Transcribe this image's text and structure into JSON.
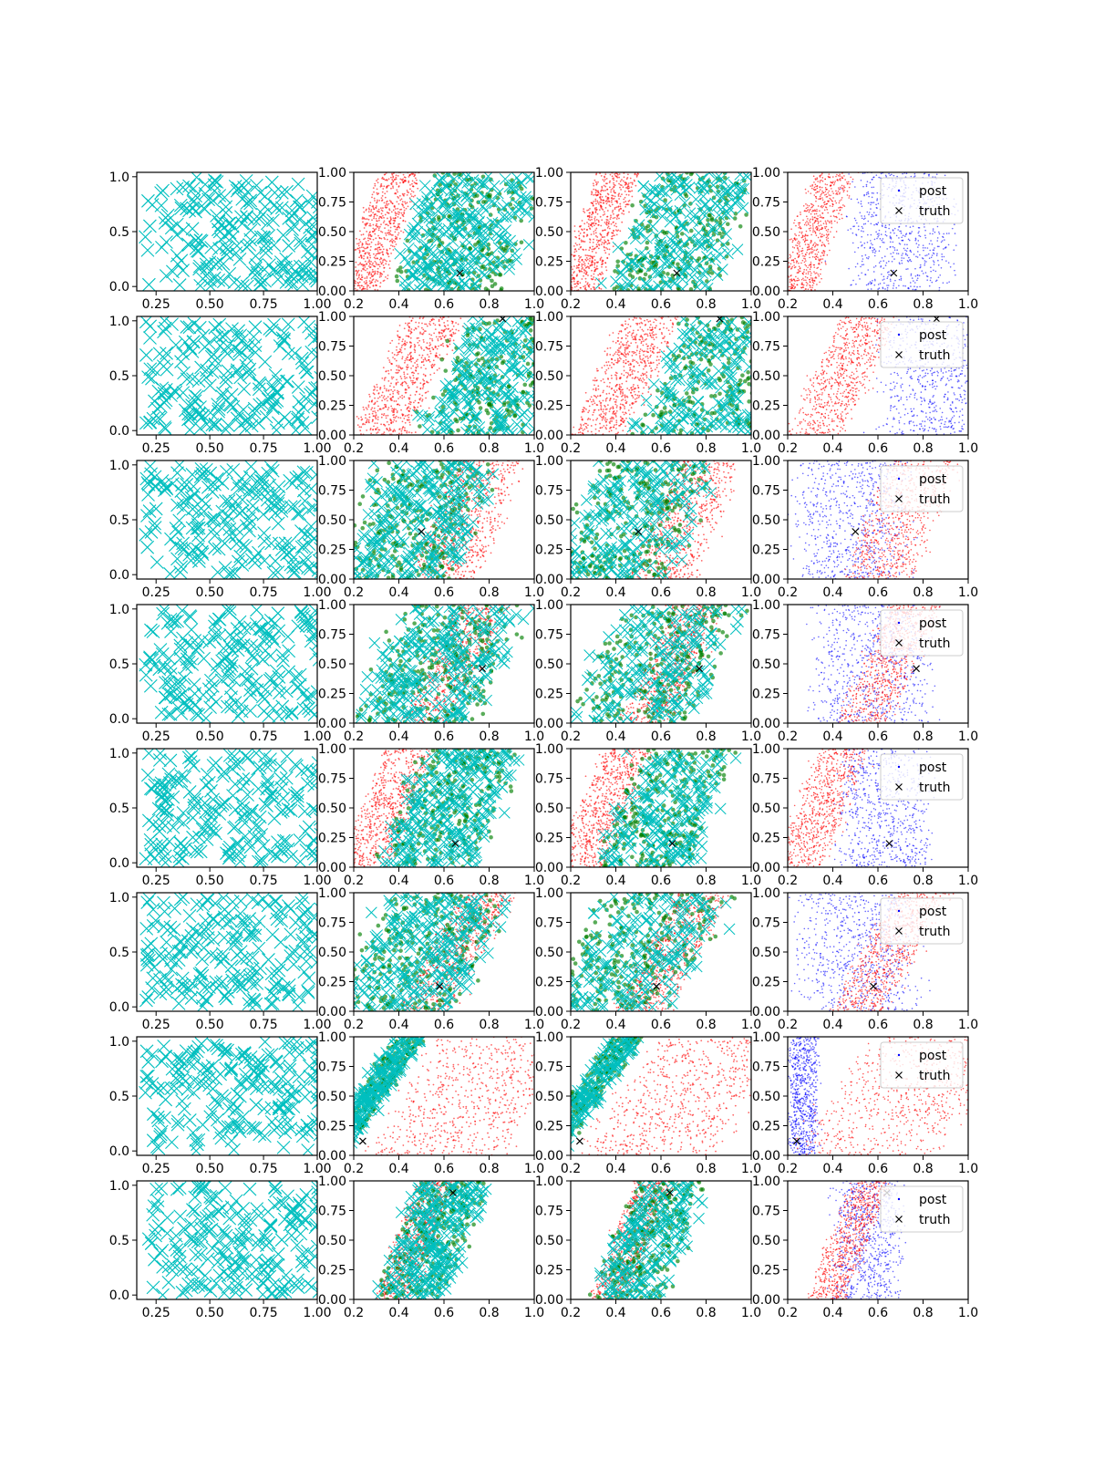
{
  "figure": {
    "background": "#ffffff",
    "n_rows": 8,
    "n_cols": 4
  },
  "colors": {
    "prior": "#00bfbf",
    "sample": "#008000",
    "post_red": "#ff0000",
    "post_blue": "#0000ff",
    "truth": "#000000"
  },
  "chart_data": {
    "type": "scatter",
    "col0_axes": {
      "xlim": [
        0.16,
        1.0
      ],
      "ylim": [
        -0.04,
        1.04
      ],
      "xticks": [
        0.25,
        0.5,
        0.75,
        1.0
      ],
      "xtick_labels": [
        "0.25",
        "0.50",
        "0.75",
        "1.00"
      ],
      "yticks": [
        0.0,
        0.5,
        1.0
      ],
      "ytick_labels": [
        "0.0",
        "0.5",
        "1.0"
      ]
    },
    "posterior_axes": {
      "xlim": [
        0.2,
        1.0
      ],
      "ylim": [
        0.0,
        1.0
      ],
      "xticks": [
        0.2,
        0.4,
        0.6,
        0.8,
        1.0
      ],
      "xtick_labels": [
        "0.2",
        "0.4",
        "0.6",
        "0.8",
        "1.0"
      ],
      "yticks": [
        0.0,
        0.25,
        0.5,
        0.75,
        1.0
      ],
      "ytick_labels": [
        "0.00",
        "0.25",
        "0.50",
        "0.75",
        "1.00"
      ]
    },
    "legend": {
      "entries": [
        "post",
        "truth"
      ],
      "placement": "upper right"
    },
    "series_names": [
      "post",
      "truth"
    ],
    "rows": [
      {
        "truth": [
          0.67,
          0.15
        ],
        "red": {
          "center": 0.32,
          "slope": 0.09,
          "width": 0.11
        },
        "blue": {
          "center": 0.7,
          "slope": 0.0,
          "width": 0.28,
          "spread_y": 1.0
        },
        "green_side": "right"
      },
      {
        "truth": [
          0.86,
          0.98
        ],
        "red": {
          "center": 0.44,
          "slope": 0.12,
          "width": 0.15
        },
        "blue": {
          "center": 0.86,
          "slope": 0.0,
          "width": 0.3,
          "spread_y": 1.0
        },
        "green_side": "right"
      },
      {
        "truth": [
          0.5,
          0.4
        ],
        "red": {
          "center": 0.7,
          "slope": 0.1,
          "width": 0.18
        },
        "blue": {
          "center": 0.48,
          "slope": 0.0,
          "width": 0.3,
          "spread_y": 1.0
        },
        "green_side": "left"
      },
      {
        "truth": [
          0.77,
          0.46
        ],
        "red": {
          "center": 0.65,
          "slope": 0.12,
          "width": 0.14
        },
        "blue": {
          "center": 0.58,
          "slope": 0.0,
          "width": 0.32,
          "spread_y": 1.0
        },
        "green_side": "left"
      },
      {
        "truth": [
          0.65,
          0.2
        ],
        "red": {
          "center": 0.35,
          "slope": 0.1,
          "width": 0.13
        },
        "blue": {
          "center": 0.62,
          "slope": 0.0,
          "width": 0.25,
          "spread_y": 1.0
        },
        "green_side": "right"
      },
      {
        "truth": [
          0.58,
          0.21
        ],
        "red": {
          "center": 0.65,
          "slope": 0.14,
          "width": 0.14
        },
        "blue": {
          "center": 0.5,
          "slope": 0.0,
          "width": 0.32,
          "spread_y": 1.0
        },
        "green_side": "left"
      },
      {
        "truth": [
          0.24,
          0.12
        ],
        "red": {
          "center": 0.72,
          "slope": 0.18,
          "width": 0.36
        },
        "blue": {
          "center": 0.27,
          "slope": 0.0,
          "width": 0.08,
          "spread_y": 1.0
        },
        "green_side": "left"
      },
      {
        "truth": [
          0.64,
          0.9
        ],
        "red": {
          "center": 0.47,
          "slope": 0.1,
          "width": 0.1
        },
        "blue": {
          "center": 0.55,
          "slope": 0.0,
          "width": 0.18,
          "spread_y": 1.0
        },
        "green_side": "right"
      }
    ]
  }
}
